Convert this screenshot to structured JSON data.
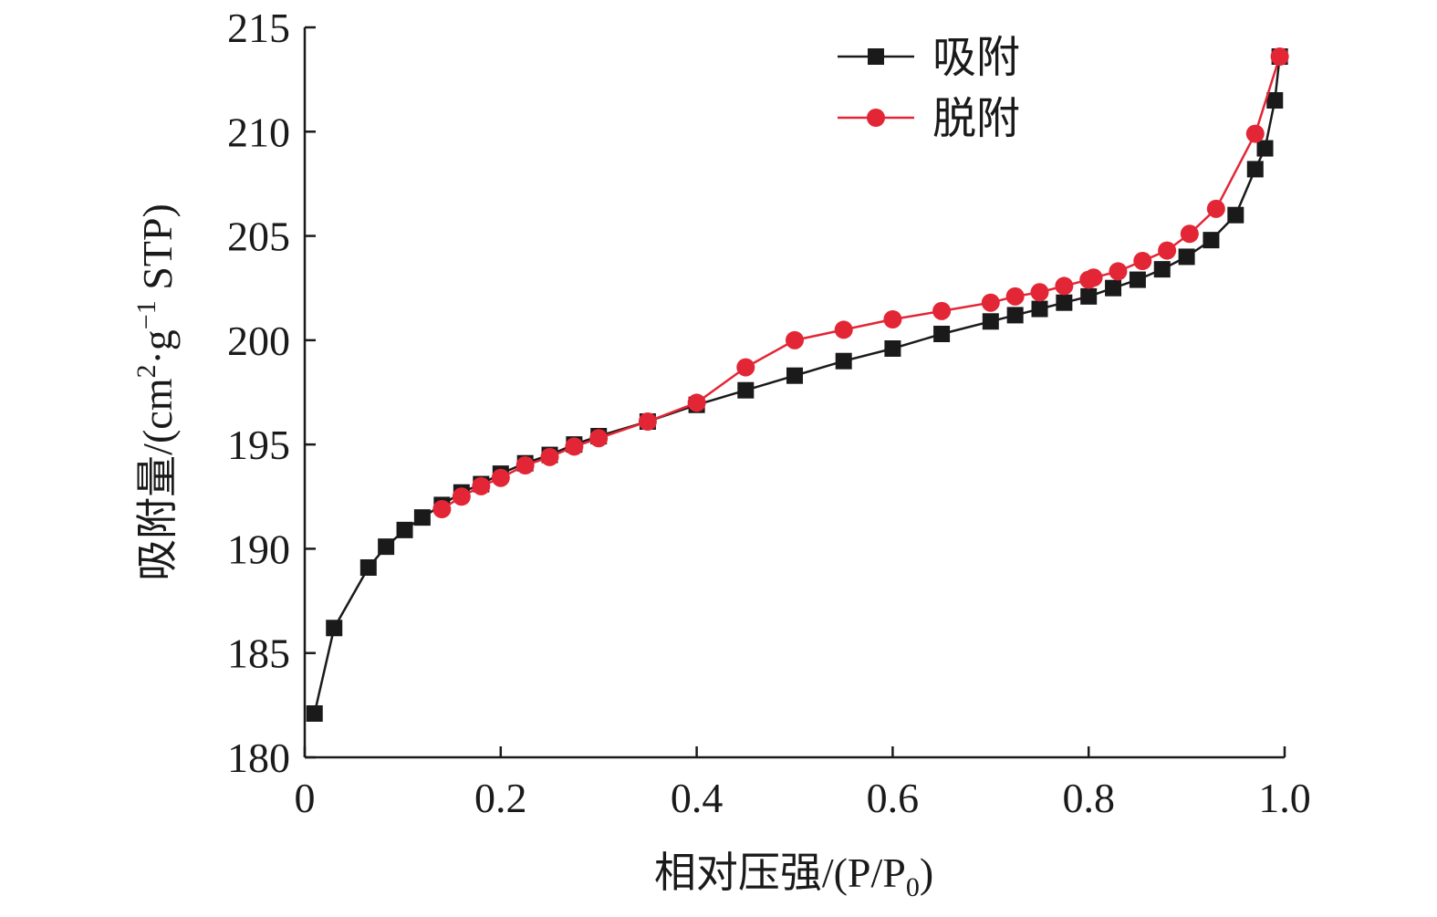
{
  "chart_data": {
    "type": "line",
    "xlabel": "相对压强/(P/P",
    "xlabel_sub": "0",
    "xlabel_tail": ")",
    "ylabel": "吸附量/(cm",
    "ylabel_sup1": "2",
    "ylabel_mid": "·g",
    "ylabel_sup2": "−1",
    "ylabel_tail": " STP)",
    "xlim": [
      0,
      1.0
    ],
    "ylim": [
      180,
      215
    ],
    "xticks": [
      0,
      0.2,
      0.4,
      0.6,
      0.8,
      1.0
    ],
    "xtick_labels": [
      "0",
      "0.2",
      "0.4",
      "0.6",
      "0.8",
      "1.0"
    ],
    "yticks": [
      180,
      185,
      190,
      195,
      200,
      205,
      210,
      215
    ],
    "ytick_labels": [
      "180",
      "185",
      "190",
      "195",
      "200",
      "205",
      "210",
      "215"
    ],
    "legend_position": "top-right",
    "series": [
      {
        "name": "吸附",
        "color": "#1a1a1a",
        "marker": "square",
        "x": [
          0.01,
          0.03,
          0.065,
          0.083,
          0.102,
          0.12,
          0.14,
          0.16,
          0.18,
          0.2,
          0.225,
          0.25,
          0.275,
          0.3,
          0.35,
          0.4,
          0.45,
          0.5,
          0.55,
          0.6,
          0.65,
          0.7,
          0.725,
          0.75,
          0.775,
          0.8,
          0.825,
          0.85,
          0.875,
          0.9,
          0.925,
          0.95,
          0.97,
          0.98,
          0.99,
          0.995
        ],
        "y": [
          182.1,
          186.2,
          189.1,
          190.1,
          190.9,
          191.5,
          192.1,
          192.7,
          193.1,
          193.6,
          194.1,
          194.5,
          195.0,
          195.4,
          196.1,
          196.9,
          197.6,
          198.3,
          199.0,
          199.6,
          200.3,
          200.9,
          201.2,
          201.5,
          201.8,
          202.1,
          202.5,
          202.9,
          203.4,
          204.0,
          204.8,
          206.0,
          208.2,
          209.2,
          211.5,
          213.6
        ]
      },
      {
        "name": "脱附",
        "color": "#e32636",
        "marker": "circle",
        "x": [
          0.14,
          0.16,
          0.18,
          0.2,
          0.225,
          0.25,
          0.275,
          0.3,
          0.35,
          0.4,
          0.45,
          0.5,
          0.55,
          0.6,
          0.65,
          0.7,
          0.725,
          0.75,
          0.775,
          0.8,
          0.805,
          0.83,
          0.855,
          0.88,
          0.903,
          0.93,
          0.97,
          0.995
        ],
        "y": [
          191.9,
          192.5,
          193.0,
          193.4,
          194.0,
          194.4,
          194.9,
          195.3,
          196.1,
          197.0,
          198.7,
          200.0,
          200.5,
          201.0,
          201.4,
          201.8,
          202.1,
          202.3,
          202.6,
          202.9,
          203.0,
          203.3,
          203.8,
          204.3,
          205.1,
          206.3,
          209.9,
          213.6
        ]
      }
    ]
  }
}
